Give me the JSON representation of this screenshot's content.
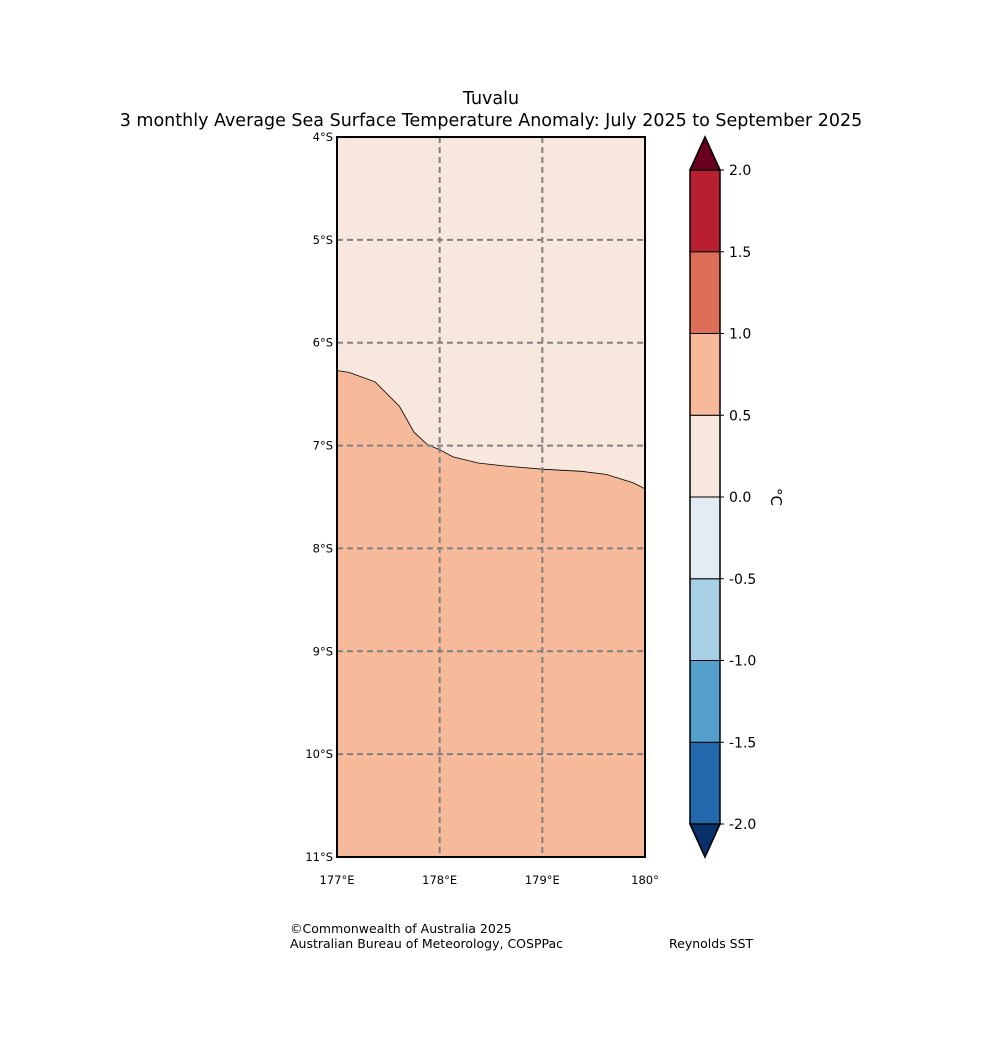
{
  "title": {
    "line1": "Tuvalu",
    "line2": "3 monthly Average Sea Surface Temperature Anomaly: July 2025 to September 2025"
  },
  "map": {
    "lat_range": [
      -11,
      -4
    ],
    "lon_range": [
      177,
      180
    ],
    "lat_labels": [
      "4°S",
      "5°S",
      "6°S",
      "7°S",
      "8°S",
      "9°S",
      "10°S",
      "11°S"
    ],
    "lon_labels": [
      "177°E",
      "178°E",
      "179°E",
      "180°"
    ],
    "regions": [
      {
        "name": "anomaly 0.0 to 0.5",
        "range": [
          0.0,
          0.5
        ],
        "color": "#f8e7dc"
      },
      {
        "name": "anomaly 0.5 to 1.0",
        "range": [
          0.5,
          1.0
        ],
        "color": "#f6b99a"
      }
    ],
    "contour_0_5": [
      [
        177.0,
        -6.27
      ],
      [
        177.12,
        -6.29
      ],
      [
        177.37,
        -6.38
      ],
      [
        177.61,
        -6.62
      ],
      [
        177.75,
        -6.87
      ],
      [
        177.88,
        -6.99
      ],
      [
        178.0,
        -7.04
      ],
      [
        178.13,
        -7.11
      ],
      [
        178.38,
        -7.17
      ],
      [
        178.65,
        -7.2
      ],
      [
        179.0,
        -7.23
      ],
      [
        179.38,
        -7.25
      ],
      [
        179.62,
        -7.28
      ],
      [
        179.88,
        -7.36
      ],
      [
        180.0,
        -7.42
      ]
    ]
  },
  "colorbar": {
    "unit": "°C",
    "tick_labels": [
      "2.0",
      "1.5",
      "1.0",
      "0.5",
      "0.0",
      "-0.5",
      "-1.0",
      "-1.5",
      "-2.0"
    ],
    "bins": [
      {
        "from": -2.0,
        "to": -1.5,
        "color": "#2369ae"
      },
      {
        "from": -1.5,
        "to": -1.0,
        "color": "#559fcc"
      },
      {
        "from": -1.0,
        "to": -0.5,
        "color": "#a7d0e4"
      },
      {
        "from": -0.5,
        "to": 0.0,
        "color": "#e3ecf3"
      },
      {
        "from": 0.0,
        "to": 0.5,
        "color": "#f8e7dc"
      },
      {
        "from": 0.5,
        "to": 1.0,
        "color": "#f6b99a"
      },
      {
        "from": 1.0,
        "to": 1.5,
        "color": "#dd6f59"
      },
      {
        "from": 1.5,
        "to": 2.0,
        "color": "#b8202f"
      }
    ],
    "over_color": "#6b0020",
    "under_color": "#08306b"
  },
  "credits": {
    "copyright": "©Commonwealth of Australia 2025",
    "agency": "Australian Bureau of Meteorology, COSPPac",
    "source": "Reynolds SST"
  }
}
